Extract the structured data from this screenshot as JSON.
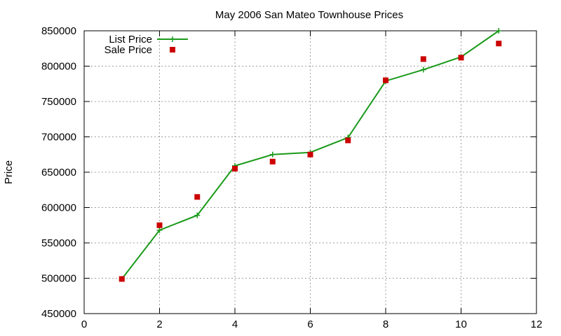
{
  "chart_data": {
    "type": "line",
    "title": "May 2006 San Mateo Townhouse Prices",
    "xlabel": "",
    "ylabel": "Price",
    "xlim": [
      0,
      12
    ],
    "ylim": [
      450000,
      850000
    ],
    "xticks": [
      0,
      2,
      4,
      6,
      8,
      10,
      12
    ],
    "yticks": [
      450000,
      500000,
      550000,
      600000,
      650000,
      700000,
      750000,
      800000,
      850000
    ],
    "grid": true,
    "legend_position": "top-left",
    "series": [
      {
        "name": "List Price",
        "style": "line-with-plus-markers",
        "color": "#1a9a1a",
        "x": [
          1,
          2,
          3,
          4,
          5,
          6,
          7,
          8,
          9,
          10,
          11
        ],
        "values": [
          499000,
          568000,
          589000,
          659000,
          675000,
          678000,
          699000,
          779000,
          795000,
          813000,
          850000
        ]
      },
      {
        "name": "Sale Price",
        "style": "square-markers",
        "color": "#cc0000",
        "x": [
          1,
          2,
          3,
          4,
          5,
          6,
          7,
          8,
          9,
          10,
          11
        ],
        "values": [
          499000,
          575000,
          615000,
          655000,
          665000,
          675000,
          695000,
          780000,
          810000,
          812000,
          832000
        ]
      }
    ]
  }
}
